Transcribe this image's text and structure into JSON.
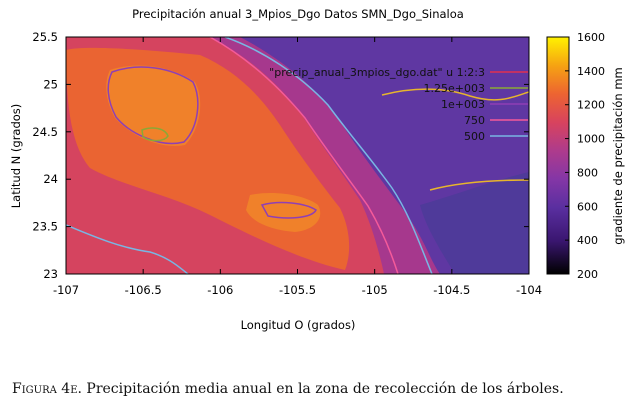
{
  "chart_data": {
    "type": "heatmap",
    "title": "Precipitación anual 3_Mpios_Dgo Datos SMN_Dgo_Sinaloa",
    "xlabel": "Longitud O (grados)",
    "ylabel": "Latitud N (grados)",
    "xlim": [
      -107,
      -104
    ],
    "ylim": [
      23,
      25.5
    ],
    "x_ticks": [
      "-107",
      "-106.5",
      "-106",
      "-105.5",
      "-105",
      "-104.5",
      "-104"
    ],
    "y_ticks": [
      "23",
      "23.5",
      "24",
      "24.5",
      "25",
      "25.5"
    ],
    "colorbar": {
      "label": "gradiente de precipitación mm",
      "range": [
        200,
        1600
      ],
      "ticks": [
        "200",
        "400",
        "600",
        "800",
        "1000",
        "1200",
        "1400",
        "1600"
      ]
    },
    "legend": {
      "placement": "top-right",
      "entries": [
        {
          "label": "\"precip_anual_3mpios_dgo.dat\" u 1:2:3",
          "color": "#e03050"
        },
        {
          "label": "1.25e+003",
          "color": "#8aa836"
        },
        {
          "label": "1e+003",
          "color": "#8f3fb5"
        },
        {
          "label": "750",
          "color": "#f45a9a"
        },
        {
          "label": "500",
          "color": "#79b6e3"
        }
      ]
    },
    "contour_levels": [
      500,
      750,
      1000,
      1250
    ]
  },
  "caption": {
    "label": "Figura 4e.",
    "text": "Precipitación media anual en la zona de recolección de los árboles."
  }
}
